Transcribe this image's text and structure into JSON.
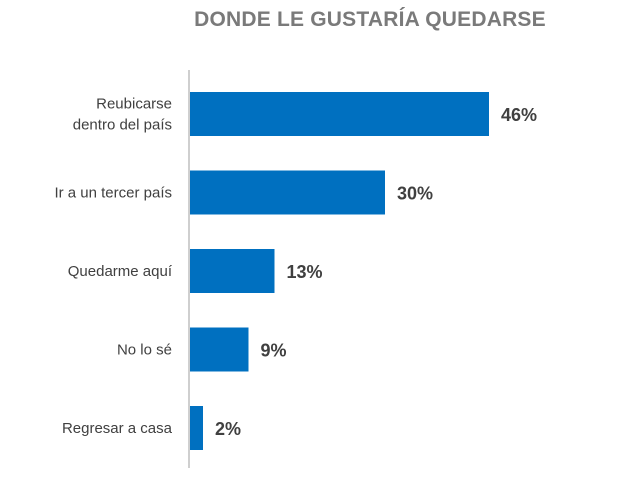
{
  "chart_data": {
    "type": "bar",
    "orientation": "horizontal",
    "title": "DONDE LE GUSTARÍA QUEDARSE",
    "categories": [
      [
        "Reubicarse",
        "dentro del país"
      ],
      [
        "Ir a un tercer país"
      ],
      [
        "Quedarme aquí"
      ],
      [
        "No lo sé"
      ],
      [
        "Regresar a casa"
      ]
    ],
    "values": [
      46,
      30,
      13,
      9,
      2
    ],
    "value_labels": [
      "46%",
      "30%",
      "13%",
      "9%",
      "2%"
    ],
    "xlim": [
      0,
      100
    ],
    "grid": false,
    "legend": "none",
    "bar_color": "#0070c0",
    "axis_color": "#bfbfbf"
  }
}
